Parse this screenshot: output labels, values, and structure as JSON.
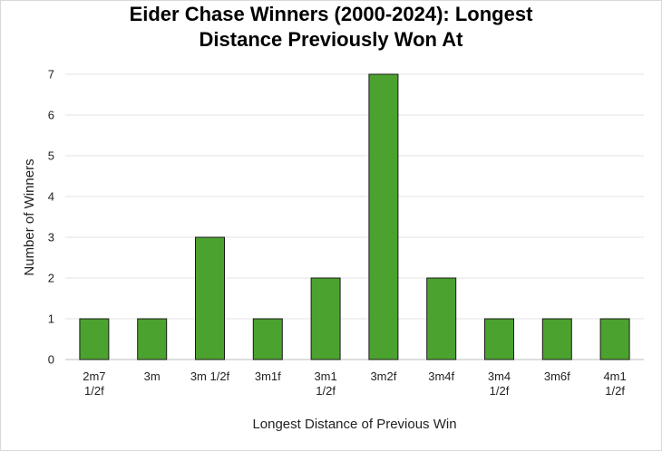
{
  "chart_data": {
    "type": "bar",
    "title_lines": [
      "Eider Chase Winners (2000-2024): Longest",
      "Distance Previously Won At"
    ],
    "xlabel": "Longest Distance of Previous Win",
    "ylabel": "Number of Winners",
    "categories": [
      [
        "2m7",
        "1/2f"
      ],
      [
        "3m"
      ],
      [
        "3m 1/2f"
      ],
      [
        "3m1f"
      ],
      [
        "3m1",
        "1/2f"
      ],
      [
        "3m2f"
      ],
      [
        "3m4f"
      ],
      [
        "3m4",
        "1/2f"
      ],
      [
        "3m6f"
      ],
      [
        "4m1",
        "1/2f"
      ]
    ],
    "values": [
      1,
      1,
      3,
      1,
      2,
      7,
      2,
      1,
      1,
      1
    ],
    "ylim": [
      0,
      7
    ],
    "yticks": [
      0,
      1,
      2,
      3,
      4,
      5,
      6,
      7
    ],
    "grid": true,
    "legend": "none",
    "bar_color": "#4ca22f",
    "bar_edge_color": "#1a1a1a",
    "grid_color": "#e3e3e3"
  }
}
